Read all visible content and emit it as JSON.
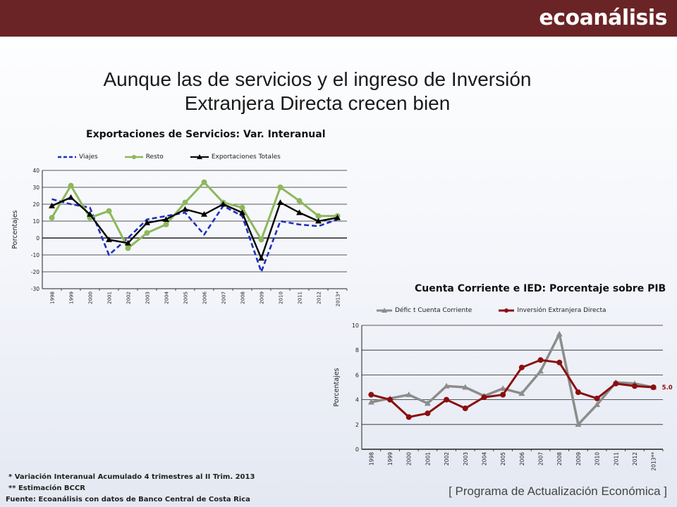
{
  "brand": {
    "name": "ecoanálisis",
    "band_color": "#6b2426"
  },
  "slide": {
    "title_line1": "Aunque las de servicios y el ingreso de Inversión",
    "title_line2": "Extranjera Directa  crecen bien"
  },
  "chart_data": [
    {
      "type": "line",
      "title": "Exportaciones de Servicios: Var. Interanual",
      "ylabel": "Porcentajes",
      "xlabel": "",
      "ylim": [
        -30,
        40
      ],
      "yticks": [
        "40",
        "30",
        "20",
        "10",
        "0",
        "-10",
        "-20",
        "-30"
      ],
      "grid": true,
      "legend": "top",
      "categories": [
        "1998",
        "1999",
        "2000",
        "2001",
        "2002",
        "2003",
        "2004",
        "2005",
        "2006",
        "2007",
        "2008",
        "2009",
        "2010",
        "2011",
        "2012",
        "2013*"
      ],
      "series": [
        {
          "name": "Viajes",
          "color": "#1f2fbf",
          "style": "dashed",
          "marker": "none",
          "values": [
            23,
            20,
            18,
            -10,
            0,
            11,
            13,
            15,
            2,
            19,
            13,
            -20,
            10,
            8,
            7,
            11
          ]
        },
        {
          "name": "Resto",
          "color": "#8db85a",
          "style": "solid",
          "marker": "circle",
          "values": [
            12,
            31,
            12,
            16,
            -6,
            3,
            8,
            21,
            33,
            21,
            18,
            -1,
            30,
            22,
            13,
            13
          ]
        },
        {
          "name": "Exportaciones Totales",
          "color": "#000000",
          "style": "solid",
          "marker": "triangle",
          "values": [
            19,
            24,
            14,
            -1,
            -3,
            9,
            11,
            17,
            14,
            20,
            15,
            -12,
            21,
            15,
            10,
            12
          ]
        }
      ]
    },
    {
      "type": "line",
      "title": "Cuenta Corriente e IED: Porcentaje sobre PIB",
      "ylabel": "Porcentajes",
      "xlabel": "",
      "ylim": [
        0,
        10
      ],
      "yticks": [
        "10",
        "8",
        "6",
        "4",
        "2",
        "0"
      ],
      "grid": true,
      "legend": "top",
      "categories": [
        "1998",
        "1999",
        "2000",
        "2001",
        "2002",
        "2003",
        "2004",
        "2005",
        "2006",
        "2007",
        "2008",
        "2009",
        "2010",
        "2011",
        "2012",
        "2013**"
      ],
      "annotation": "5.0",
      "series": [
        {
          "name": "Défic t Cuenta Corriente",
          "color": "#8c8c8c",
          "style": "solid",
          "marker": "triangle",
          "values": [
            3.8,
            4.1,
            4.4,
            3.7,
            5.1,
            5.0,
            4.3,
            4.9,
            4.5,
            6.3,
            9.3,
            2.0,
            3.6,
            5.4,
            5.3,
            5.0
          ]
        },
        {
          "name": "Inversión Extranjera Directa",
          "color": "#8b0e0e",
          "style": "solid",
          "marker": "circle",
          "values": [
            4.4,
            4.0,
            2.6,
            2.9,
            4.0,
            3.3,
            4.2,
            4.4,
            6.6,
            7.2,
            7.0,
            4.6,
            4.1,
            5.3,
            5.1,
            5.0
          ]
        }
      ]
    }
  ],
  "notes": {
    "note1_mark": "*",
    "note1": " Variación Interanual Acumulado 4 trimestres al II Trim. 2013",
    "note2_mark": "**",
    "note2": " Estimación BCCR",
    "source": "Fuente: Ecoanálisis con datos de Banco Central de Costa Rica"
  },
  "program": "[ Programa de Actualización Económica ]"
}
